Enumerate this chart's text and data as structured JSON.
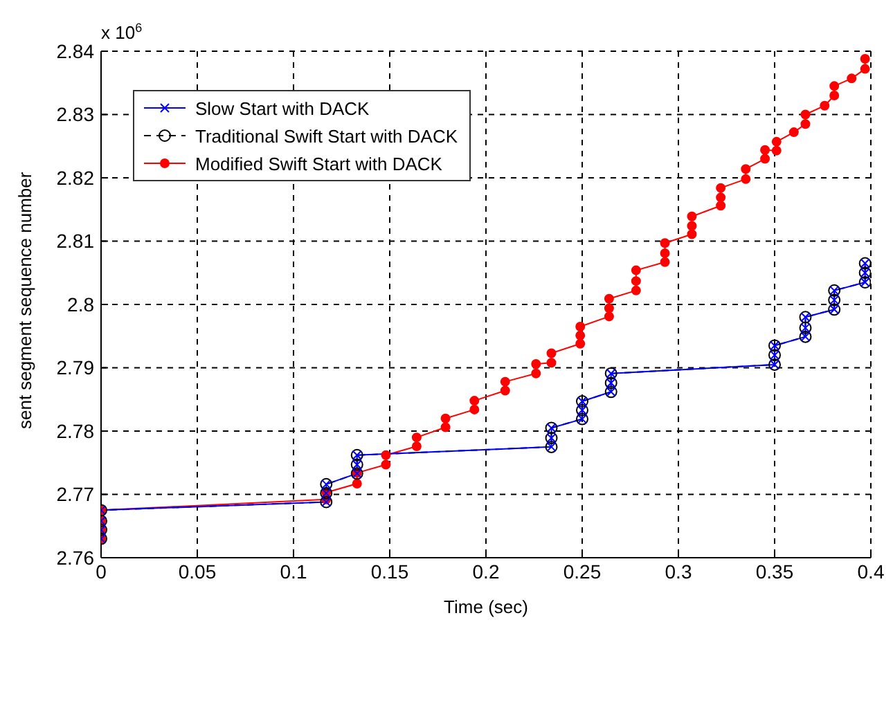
{
  "chart_data": {
    "type": "line",
    "xlabel": "Time (sec)",
    "ylabel": "sent segment sequence number",
    "annotations": [
      "x 10$^{6}$"
    ],
    "xlim": [
      0,
      0.4
    ],
    "xticks": [
      0,
      0.05,
      0.1,
      0.15,
      0.2,
      0.25,
      0.3,
      0.35,
      0.4
    ],
    "ylim": [
      2.76,
      2.84
    ],
    "yticks": [
      2.76,
      2.77,
      2.78,
      2.79,
      2.8,
      2.81,
      2.82,
      2.83,
      2.84
    ],
    "grid": true,
    "legend": "top left",
    "series": [
      {
        "name": "Slow Start with DACK",
        "color": "#0000ff",
        "marker": "cross",
        "line_style": "solid",
        "x": [
          0,
          0,
          0,
          0,
          0.117,
          0.117,
          0.117,
          0.133,
          0.133,
          0.133,
          0.234,
          0.234,
          0.234,
          0.25,
          0.25,
          0.25,
          0.265,
          0.265,
          0.265,
          0.35,
          0.35,
          0.35,
          0.366,
          0.366,
          0.366,
          0.381,
          0.381,
          0.381,
          0.397,
          0.397,
          0.397
        ],
        "values": [
          2.763,
          2.7644,
          2.7658,
          2.7675,
          2.7688,
          2.7702,
          2.7716,
          2.7733,
          2.7747,
          2.7762,
          2.7775,
          2.7789,
          2.7805,
          2.7819,
          2.7833,
          2.7847,
          2.7862,
          2.7876,
          2.7891,
          2.7905,
          2.792,
          2.7935,
          2.7949,
          2.7963,
          2.798,
          2.7992,
          2.8007,
          2.8022,
          2.8035,
          2.805,
          2.8065
        ]
      },
      {
        "name": "Traditional Swift Start with DACK",
        "color": "#000000",
        "marker": "circle",
        "line_style": "dashed",
        "x": [
          0,
          0,
          0,
          0,
          0.117,
          0.117,
          0.117,
          0.133,
          0.133,
          0.133,
          0.234,
          0.234,
          0.234,
          0.25,
          0.25,
          0.25,
          0.265,
          0.265,
          0.265,
          0.35,
          0.35,
          0.35,
          0.366,
          0.366,
          0.366,
          0.381,
          0.381,
          0.381,
          0.397,
          0.397,
          0.397
        ],
        "values": [
          2.763,
          2.7644,
          2.7658,
          2.7675,
          2.7688,
          2.7702,
          2.7716,
          2.7733,
          2.7747,
          2.7762,
          2.7775,
          2.7789,
          2.7805,
          2.7819,
          2.7833,
          2.7847,
          2.7862,
          2.7876,
          2.7891,
          2.7905,
          2.792,
          2.7935,
          2.7949,
          2.7963,
          2.798,
          2.7992,
          2.8007,
          2.8022,
          2.8035,
          2.805,
          2.8065
        ]
      },
      {
        "name": "Modified Swift Start with DACK",
        "color": "#ff0000",
        "marker": "circle_filled",
        "line_style": "solid",
        "x": [
          0,
          0,
          0,
          0,
          0.117,
          0.117,
          0.133,
          0.133,
          0.148,
          0.148,
          0.164,
          0.164,
          0.179,
          0.179,
          0.194,
          0.194,
          0.21,
          0.21,
          0.226,
          0.226,
          0.234,
          0.234,
          0.249,
          0.249,
          0.249,
          0.264,
          0.264,
          0.264,
          0.278,
          0.278,
          0.278,
          0.293,
          0.293,
          0.293,
          0.307,
          0.307,
          0.307,
          0.322,
          0.322,
          0.322,
          0.335,
          0.335,
          0.345,
          0.345,
          0.351,
          0.351,
          0.36,
          0.366,
          0.366,
          0.376,
          0.381,
          0.381,
          0.39,
          0.397,
          0.397
        ],
        "values": [
          2.763,
          2.7644,
          2.7658,
          2.7675,
          2.7692,
          2.7703,
          2.7717,
          2.7734,
          2.7747,
          2.7762,
          2.7776,
          2.779,
          2.7806,
          2.782,
          2.7834,
          2.7848,
          2.7864,
          2.7878,
          2.7891,
          2.7906,
          2.7908,
          2.7923,
          2.7938,
          2.7951,
          2.7965,
          2.7981,
          2.7994,
          2.8009,
          2.8022,
          2.8037,
          2.8054,
          2.8067,
          2.8081,
          2.8097,
          2.8111,
          2.8124,
          2.8139,
          2.8156,
          2.8169,
          2.8184,
          2.8198,
          2.8214,
          2.823,
          2.8244,
          2.8243,
          2.8257,
          2.8272,
          2.8285,
          2.83,
          2.8314,
          2.833,
          2.8345,
          2.8357,
          2.8372,
          2.8388
        ]
      }
    ]
  }
}
